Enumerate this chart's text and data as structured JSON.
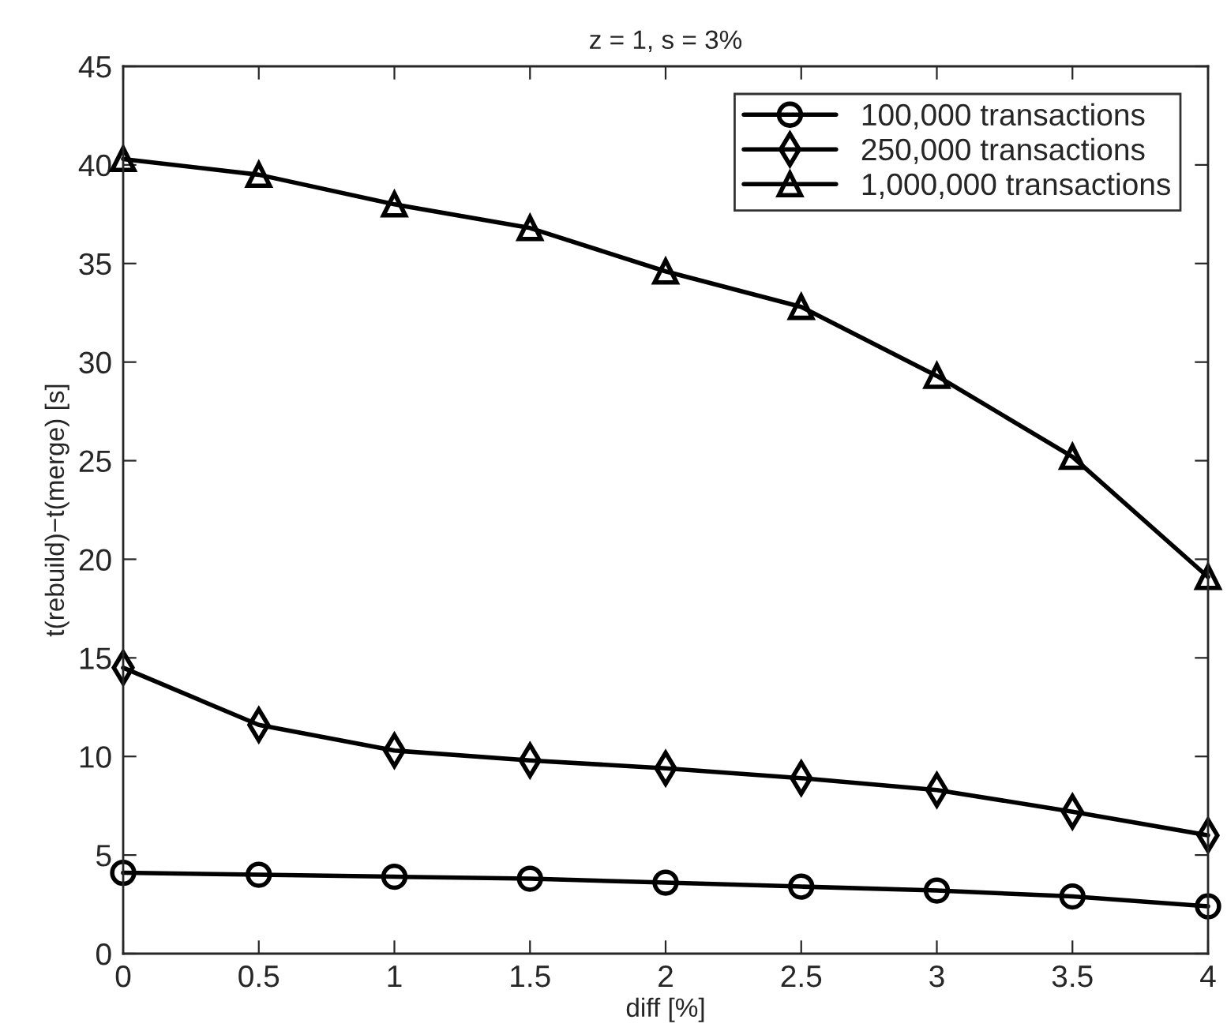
{
  "chart_data": {
    "type": "line",
    "title": "z = 1, s = 3%",
    "xlabel": "diff [%]",
    "ylabel": "t(rebuild)−t(merge) [s]",
    "x": [
      0,
      0.5,
      1,
      1.5,
      2,
      2.5,
      3,
      3.5,
      4
    ],
    "series": [
      {
        "name": "100,000 transactions",
        "color": "#000000",
        "marker": "circle",
        "values": [
          4.1,
          4.0,
          3.9,
          3.8,
          3.6,
          3.4,
          3.2,
          2.9,
          2.4
        ]
      },
      {
        "name": "250,000 transactions",
        "color": "#000000",
        "marker": "diamond",
        "values": [
          14.5,
          11.6,
          10.3,
          9.8,
          9.4,
          8.9,
          8.3,
          7.2,
          6.0
        ]
      },
      {
        "name": "1,000,000 transactions",
        "color": "#000000",
        "marker": "triangle",
        "values": [
          40.3,
          39.5,
          38.0,
          36.8,
          34.6,
          32.8,
          29.3,
          25.2,
          19.1
        ]
      }
    ],
    "xlim": [
      0,
      4
    ],
    "xticks": [
      0,
      0.5,
      1,
      1.5,
      2,
      2.5,
      3,
      3.5,
      4
    ],
    "ylim": [
      0,
      45
    ],
    "yticks": [
      0,
      5,
      10,
      15,
      20,
      25,
      30,
      35,
      40,
      45
    ],
    "legend": "top right",
    "line_style": "solid",
    "grid": false
  }
}
